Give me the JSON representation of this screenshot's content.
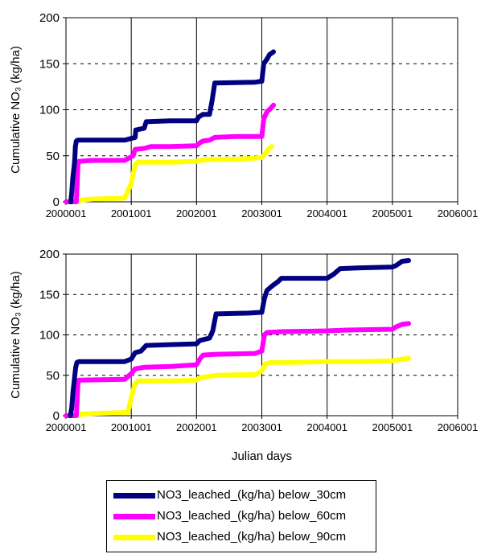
{
  "chart_data": [
    {
      "type": "line",
      "ylabel": "Cumulative NO₃ (kg/ha)",
      "xlabel": "",
      "xlim": [
        2000001,
        2006001
      ],
      "ylim": [
        0,
        200
      ],
      "x_ticks": [
        "2000001",
        "2001001",
        "2002001",
        "2003001",
        "2004001",
        "2005001",
        "2006001"
      ],
      "y_ticks": [
        "0",
        "50",
        "100",
        "150",
        "200"
      ],
      "grid": "dashed horizontal lines and solid vertical lines at year ticks",
      "series": [
        {
          "name": "NO3_leached_(kg/ha) below_30cm",
          "color": "#000080",
          "points": [
            [
              2000075,
              0
            ],
            [
              2000090,
              10
            ],
            [
              2000105,
              25
            ],
            [
              2000115,
              32
            ],
            [
              2000125,
              38
            ],
            [
              2000135,
              45
            ],
            [
              2000145,
              60
            ],
            [
              2000160,
              66
            ],
            [
              2000180,
              67
            ],
            [
              2000900,
              67
            ],
            [
              2001060,
              70
            ],
            [
              2001070,
              78
            ],
            [
              2001200,
              80
            ],
            [
              2001230,
              87
            ],
            [
              2001600,
              88
            ],
            [
              2002001,
              88
            ],
            [
              2002030,
              92
            ],
            [
              2002100,
              95
            ],
            [
              2002200,
              95
            ],
            [
              2002240,
              110
            ],
            [
              2002280,
              129
            ],
            [
              2002900,
              130
            ],
            [
              2003001,
              131
            ],
            [
              2003030,
              150
            ],
            [
              2003080,
              155
            ],
            [
              2003120,
              160
            ],
            [
              2003180,
              163
            ]
          ]
        },
        {
          "name": "NO3_leached_(kg/ha) below_60cm",
          "color": "#FF00FF",
          "points": [
            [
              2000001,
              0
            ],
            [
              2000160,
              0
            ],
            [
              2000185,
              40
            ],
            [
              2000200,
              44
            ],
            [
              2000400,
              45
            ],
            [
              2000900,
              45
            ],
            [
              2001030,
              50
            ],
            [
              2001060,
              57
            ],
            [
              2001200,
              58
            ],
            [
              2001300,
              60
            ],
            [
              2001600,
              60
            ],
            [
              2002001,
              61
            ],
            [
              2002050,
              64
            ],
            [
              2002100,
              66
            ],
            [
              2002200,
              67
            ],
            [
              2002280,
              70
            ],
            [
              2002600,
              71
            ],
            [
              2003001,
              71
            ],
            [
              2003030,
              90
            ],
            [
              2003080,
              98
            ],
            [
              2003130,
              101
            ],
            [
              2003180,
              105
            ]
          ]
        },
        {
          "name": "NO3_leached_(kg/ha) below_90cm",
          "color": "#FFFF00",
          "points": [
            [
              2000001,
              0
            ],
            [
              2000200,
              0
            ],
            [
              2000230,
              2
            ],
            [
              2000400,
              3
            ],
            [
              2000900,
              4
            ],
            [
              2001001,
              20
            ],
            [
              2001030,
              30
            ],
            [
              2001060,
              40
            ],
            [
              2001100,
              43
            ],
            [
              2001600,
              43
            ],
            [
              2002001,
              44
            ],
            [
              2002050,
              45
            ],
            [
              2002200,
              46
            ],
            [
              2002600,
              46
            ],
            [
              2003001,
              48
            ],
            [
              2003050,
              52
            ],
            [
              2003100,
              57
            ],
            [
              2003150,
              60
            ]
          ]
        }
      ]
    },
    {
      "type": "line",
      "ylabel": "Cumulative NO₃ (kg/ha)",
      "xlabel": "Julian days",
      "xlim": [
        2000001,
        2006001
      ],
      "ylim": [
        0,
        200
      ],
      "x_ticks": [
        "2000001",
        "2001001",
        "2002001",
        "2003001",
        "2004001",
        "2005001",
        "2006001"
      ],
      "y_ticks": [
        "0",
        "50",
        "100",
        "150",
        "200"
      ],
      "grid": "dashed horizontal lines and solid vertical lines at year ticks",
      "series": [
        {
          "name": "NO3_leached_(kg/ha) below_30cm",
          "color": "#000080",
          "points": [
            [
              2000070,
              0
            ],
            [
              2000090,
              10
            ],
            [
              2000110,
              30
            ],
            [
              2000130,
              45
            ],
            [
              2000150,
              60
            ],
            [
              2000170,
              66
            ],
            [
              2000200,
              67
            ],
            [
              2000900,
              67
            ],
            [
              2001001,
              70
            ],
            [
              2001060,
              78
            ],
            [
              2001150,
              80
            ],
            [
              2001230,
              87
            ],
            [
              2001600,
              88
            ],
            [
              2002001,
              89
            ],
            [
              2002050,
              93
            ],
            [
              2002200,
              96
            ],
            [
              2002250,
              105
            ],
            [
              2002300,
              126
            ],
            [
              2002800,
              127
            ],
            [
              2003001,
              128
            ],
            [
              2003040,
              145
            ],
            [
              2003080,
              155
            ],
            [
              2003150,
              160
            ],
            [
              2003250,
              166
            ],
            [
              2003300,
              170
            ],
            [
              2003900,
              170
            ],
            [
              2004001,
              170
            ],
            [
              2004100,
              175
            ],
            [
              2004200,
              182
            ],
            [
              2004500,
              183
            ],
            [
              2005001,
              184
            ],
            [
              2005060,
              186
            ],
            [
              2005150,
              191
            ],
            [
              2005250,
              192
            ]
          ]
        },
        {
          "name": "NO3_leached_(kg/ha) below_60cm",
          "color": "#FF00FF",
          "points": [
            [
              2000001,
              0
            ],
            [
              2000160,
              0
            ],
            [
              2000185,
              40
            ],
            [
              2000200,
              44
            ],
            [
              2000900,
              45
            ],
            [
              2001001,
              52
            ],
            [
              2001060,
              58
            ],
            [
              2001200,
              60
            ],
            [
              2001600,
              61
            ],
            [
              2002001,
              63
            ],
            [
              2002050,
              70
            ],
            [
              2002100,
              75
            ],
            [
              2002300,
              76
            ],
            [
              2002900,
              77
            ],
            [
              2003001,
              80
            ],
            [
              2003040,
              100
            ],
            [
              2003080,
              103
            ],
            [
              2003300,
              104
            ],
            [
              2004001,
              105
            ],
            [
              2004300,
              106
            ],
            [
              2005001,
              107
            ],
            [
              2005060,
              110
            ],
            [
              2005150,
              113
            ],
            [
              2005250,
              114
            ]
          ]
        },
        {
          "name": "NO3_leached_(kg/ha) below_90cm",
          "color": "#FFFF00",
          "points": [
            [
              2000001,
              0
            ],
            [
              2000200,
              0
            ],
            [
              2000230,
              2
            ],
            [
              2000500,
              3
            ],
            [
              2000950,
              4
            ],
            [
              2001001,
              22
            ],
            [
              2001050,
              38
            ],
            [
              2001100,
              43
            ],
            [
              2001600,
              43
            ],
            [
              2002001,
              44
            ],
            [
              2002050,
              47
            ],
            [
              2002300,
              50
            ],
            [
              2002900,
              51
            ],
            [
              2003001,
              55
            ],
            [
              2003050,
              64
            ],
            [
              2003150,
              66
            ],
            [
              2003500,
              66
            ],
            [
              2004001,
              67
            ],
            [
              2004500,
              67
            ],
            [
              2005001,
              68
            ],
            [
              2005150,
              70
            ],
            [
              2005250,
              71
            ]
          ]
        }
      ]
    }
  ],
  "legend": {
    "items": [
      {
        "label": "NO3_leached_(kg/ha) below_30cm",
        "color": "#000080"
      },
      {
        "label": "NO3_leached_(kg/ha) below_60cm",
        "color": "#FF00FF"
      },
      {
        "label": "NO3_leached_(kg/ha) below_90cm",
        "color": "#FFFF00"
      }
    ]
  }
}
